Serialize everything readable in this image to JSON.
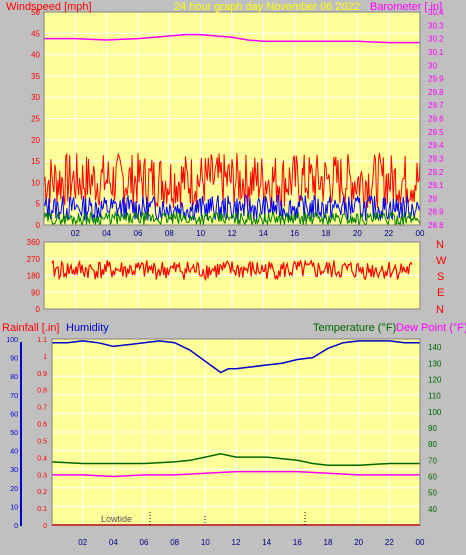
{
  "header": {
    "left_title": "Windspeed [mph]",
    "center_title": "24 hour graph day   November 06 2022",
    "right_title": "Barometer [.in]"
  },
  "bottom_header": {
    "rainfall_label": "Rainfall [.in]",
    "humidity_label": "Humidity",
    "temperature_label": "Temperature (°F)",
    "dewpoint_label": "Dew Point (°F)"
  },
  "direction_labels": [
    "N",
    "W",
    "S",
    "E",
    "N"
  ],
  "annotation": {
    "lowtide": "Lowtide"
  },
  "colors": {
    "plot_bg": "#ffff99",
    "frame_bg": "#c0c0c0",
    "wind_gust": "#ff0000",
    "wind_avg": "#0000ff",
    "wind_low": "#008000",
    "barometer": "#ff00ff",
    "direction": "#ff0000",
    "humidity": "#0000cc",
    "temperature": "#006600",
    "dewpoint": "#ff00ff",
    "rainfall": "#ff0000"
  },
  "chart_data": [
    {
      "type": "line",
      "x_ticks": [
        "02",
        "04",
        "06",
        "08",
        "10",
        "12",
        "14",
        "16",
        "18",
        "20",
        "22",
        "00"
      ],
      "ylim_left": [
        0,
        50
      ],
      "y_ticks_left": [
        "0",
        "5",
        "10",
        "15",
        "20",
        "25",
        "30",
        "35",
        "40",
        "45",
        "50"
      ],
      "ylim_right": [
        28.8,
        30.4
      ],
      "y_ticks_right": [
        "28.8",
        "28.9",
        "29",
        "29.1",
        "29.2",
        "29.3",
        "29.4",
        "29.5",
        "29.6",
        "29.7",
        "29.8",
        "29.9",
        "30",
        "30.1",
        "30.2",
        "30.3",
        "30.4"
      ],
      "series": [
        {
          "name": "Barometer",
          "axis": "right",
          "x": [
            0,
            2,
            4,
            6,
            8,
            9,
            10,
            11,
            12,
            13,
            14,
            16,
            18,
            20,
            22,
            23
          ],
          "values": [
            30.2,
            30.2,
            30.19,
            30.2,
            30.22,
            30.23,
            30.23,
            30.22,
            30.21,
            30.19,
            30.18,
            30.18,
            30.18,
            30.18,
            30.17,
            30.17
          ]
        }
      ],
      "wind_ranges": {
        "gust": [
          4,
          17
        ],
        "avg": [
          1,
          7
        ],
        "low": [
          0,
          3
        ]
      },
      "grid": true
    },
    {
      "type": "scatter",
      "ylim": [
        0,
        360
      ],
      "y_ticks": [
        "0",
        "90",
        "180",
        "270",
        "360"
      ],
      "values_range": [
        150,
        255
      ],
      "typical": 210
    },
    {
      "type": "line",
      "x_ticks": [
        "02",
        "04",
        "06",
        "08",
        "10",
        "12",
        "14",
        "16",
        "18",
        "20",
        "22",
        "00"
      ],
      "ylim_left_humidity": [
        0,
        100
      ],
      "y_ticks_humidity": [
        "0",
        "10",
        "20",
        "30",
        "40",
        "50",
        "60",
        "70",
        "80",
        "90",
        "100"
      ],
      "ylim_left_rain": [
        0,
        1.1
      ],
      "y_ticks_rain": [
        "0",
        "0.1",
        "0.2",
        "0.3",
        "0.4",
        "0.5",
        "0.6",
        "0.7",
        "0.8",
        "0.9",
        "1",
        "1.1"
      ],
      "ylim_right": [
        30,
        145
      ],
      "y_ticks_right": [
        "40",
        "50",
        "60",
        "70",
        "80",
        "90",
        "100",
        "110",
        "120",
        "130",
        "140"
      ],
      "series": [
        {
          "name": "Humidity",
          "axis": "humidity",
          "x": [
            0,
            1,
            2,
            3,
            4,
            5,
            6,
            7,
            8,
            9,
            10,
            10.5,
            11,
            11.5,
            12,
            13,
            14,
            15,
            16,
            17,
            18,
            19,
            20,
            21,
            22,
            23,
            24
          ],
          "values": [
            98,
            98,
            99,
            98,
            96,
            97,
            98,
            99,
            98,
            94,
            88,
            85,
            82,
            84,
            84,
            85,
            86,
            87,
            89,
            90,
            95,
            98,
            99,
            99,
            99,
            98,
            98
          ]
        },
        {
          "name": "Temperature",
          "axis": "right",
          "x": [
            0,
            2,
            4,
            6,
            8,
            9,
            10,
            11,
            12,
            13,
            14,
            16,
            17,
            18,
            20,
            22,
            24
          ],
          "values": [
            69,
            68,
            68,
            68,
            69,
            70,
            72,
            74,
            72,
            72,
            72,
            70,
            68,
            67,
            67,
            68,
            68
          ]
        },
        {
          "name": "Dew Point",
          "axis": "right",
          "x": [
            0,
            2,
            4,
            6,
            8,
            10,
            12,
            14,
            16,
            18,
            20,
            22,
            24
          ],
          "values": [
            61,
            61,
            60,
            61,
            61,
            62,
            63,
            63,
            63,
            62,
            61,
            61,
            61
          ]
        },
        {
          "name": "Rainfall",
          "axis": "rain",
          "x": [
            0,
            24
          ],
          "values": [
            0,
            0
          ]
        }
      ],
      "grid": true
    }
  ]
}
